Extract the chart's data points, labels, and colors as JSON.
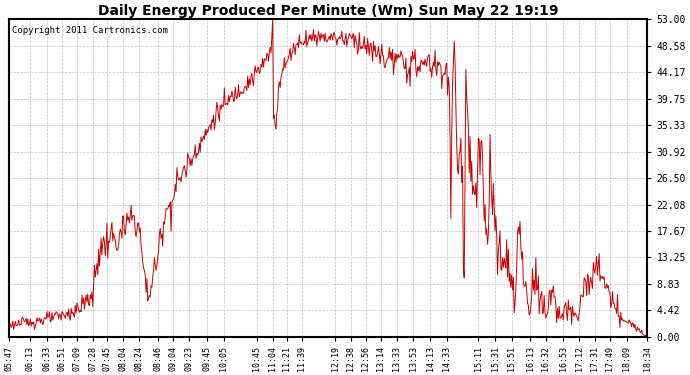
{
  "title": "Daily Energy Produced Per Minute (Wm) Sun May 22 19:19",
  "copyright": "Copyright 2011 Cartronics.com",
  "line_color": "#cc0000",
  "bg_color": "#ffffff",
  "plot_bg_color": "#ffffff",
  "grid_color": "#999999",
  "ylim": [
    0,
    53.0
  ],
  "yticks": [
    0.0,
    4.42,
    8.83,
    13.25,
    17.67,
    22.08,
    26.5,
    30.92,
    35.33,
    39.75,
    44.17,
    48.58,
    53.0
  ],
  "xtick_labels": [
    "05:47",
    "06:13",
    "06:33",
    "06:51",
    "07:09",
    "07:28",
    "07:45",
    "08:04",
    "08:24",
    "08:46",
    "09:04",
    "09:23",
    "09:45",
    "10:05",
    "10:45",
    "11:04",
    "11:21",
    "11:39",
    "12:19",
    "12:38",
    "12:56",
    "13:14",
    "13:33",
    "13:53",
    "14:13",
    "14:33",
    "15:11",
    "15:31",
    "15:51",
    "16:13",
    "16:32",
    "16:53",
    "17:12",
    "17:31",
    "17:49",
    "18:09",
    "18:34"
  ],
  "figsize": [
    6.9,
    3.75
  ],
  "dpi": 100
}
